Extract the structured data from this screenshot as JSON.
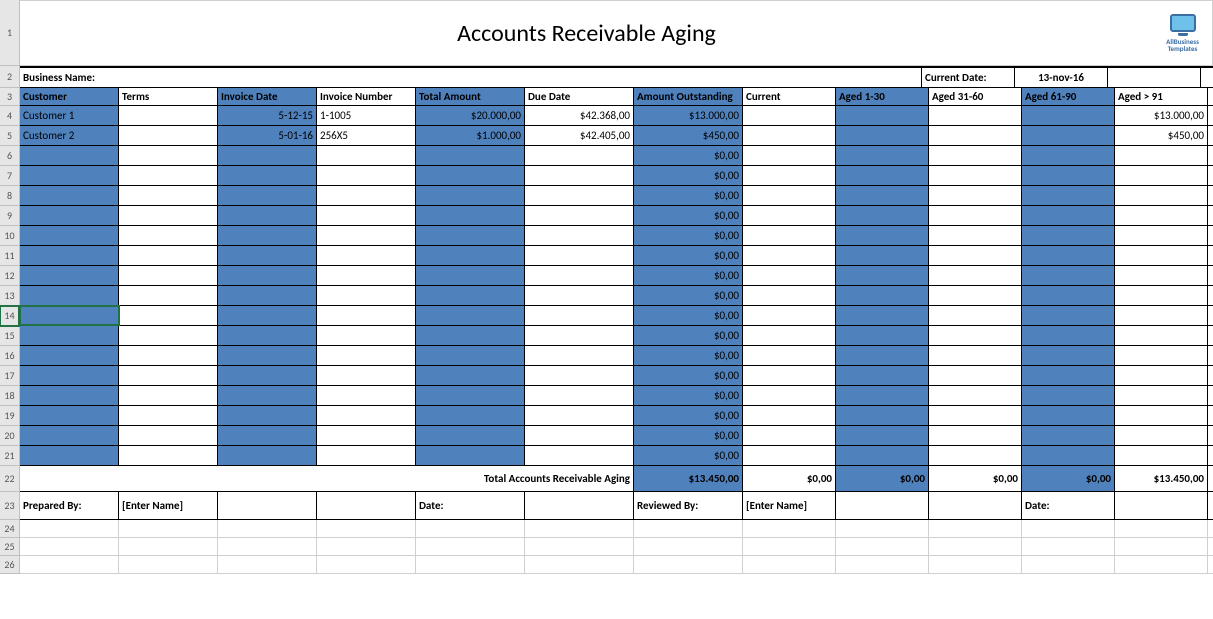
{
  "title": "Accounts Receivable Aging",
  "logo_text": "AllBusiness Templates",
  "business_label": "Business Name:",
  "current_date_label": "Current Date:",
  "current_date_value": "13-nov-16",
  "colors": {
    "blue_fill": "#4f81bd",
    "grid_border": "#000000",
    "light_border": "#d0d0d0",
    "rowhdr_bg": "#e6e6e6",
    "selection": "#217346"
  },
  "selected_row": 14,
  "headers": [
    "Customer",
    "Terms",
    "Invoice Date",
    "Invoice Number",
    "Total Amount",
    "Due Date",
    "Amount Outstanding",
    "Current",
    "Aged 1-30",
    "Aged 31-60",
    "Aged 61-90",
    "Aged > 91"
  ],
  "header_blue": [
    true,
    false,
    true,
    false,
    true,
    false,
    true,
    false,
    true,
    false,
    true,
    false
  ],
  "col_align": [
    "left",
    "left",
    "right",
    "left",
    "right",
    "right",
    "right",
    "right",
    "right",
    "right",
    "right",
    "right"
  ],
  "col_blue": [
    true,
    false,
    true,
    false,
    true,
    false,
    true,
    false,
    true,
    false,
    true,
    false
  ],
  "rows": [
    [
      "Customer 1",
      "",
      "5-12-15",
      "1-1005",
      "$20.000,00",
      "$42.368,00",
      "$13.000,00",
      "",
      "",
      "",
      "",
      "$13.000,00"
    ],
    [
      "Customer 2",
      "",
      "5-01-16",
      "256X5",
      "$1.000,00",
      "$42.405,00",
      "$450,00",
      "",
      "",
      "",
      "",
      "$450,00"
    ],
    [
      "",
      "",
      "",
      "",
      "",
      "",
      "$0,00",
      "",
      "",
      "",
      "",
      ""
    ],
    [
      "",
      "",
      "",
      "",
      "",
      "",
      "$0,00",
      "",
      "",
      "",
      "",
      ""
    ],
    [
      "",
      "",
      "",
      "",
      "",
      "",
      "$0,00",
      "",
      "",
      "",
      "",
      ""
    ],
    [
      "",
      "",
      "",
      "",
      "",
      "",
      "$0,00",
      "",
      "",
      "",
      "",
      ""
    ],
    [
      "",
      "",
      "",
      "",
      "",
      "",
      "$0,00",
      "",
      "",
      "",
      "",
      ""
    ],
    [
      "",
      "",
      "",
      "",
      "",
      "",
      "$0,00",
      "",
      "",
      "",
      "",
      ""
    ],
    [
      "",
      "",
      "",
      "",
      "",
      "",
      "$0,00",
      "",
      "",
      "",
      "",
      ""
    ],
    [
      "",
      "",
      "",
      "",
      "",
      "",
      "$0,00",
      "",
      "",
      "",
      "",
      ""
    ],
    [
      "",
      "",
      "",
      "",
      "",
      "",
      "$0,00",
      "",
      "",
      "",
      "",
      ""
    ],
    [
      "",
      "",
      "",
      "",
      "",
      "",
      "$0,00",
      "",
      "",
      "",
      "",
      ""
    ],
    [
      "",
      "",
      "",
      "",
      "",
      "",
      "$0,00",
      "",
      "",
      "",
      "",
      ""
    ],
    [
      "",
      "",
      "",
      "",
      "",
      "",
      "$0,00",
      "",
      "",
      "",
      "",
      ""
    ],
    [
      "",
      "",
      "",
      "",
      "",
      "",
      "$0,00",
      "",
      "",
      "",
      "",
      ""
    ],
    [
      "",
      "",
      "",
      "",
      "",
      "",
      "$0,00",
      "",
      "",
      "",
      "",
      ""
    ],
    [
      "",
      "",
      "",
      "",
      "",
      "",
      "$0,00",
      "",
      "",
      "",
      "",
      ""
    ],
    [
      "",
      "",
      "",
      "",
      "",
      "",
      "$0,00",
      "",
      "",
      "",
      "",
      ""
    ]
  ],
  "totals_label": "Total Accounts Receivable Aging",
  "totals": [
    "$13.450,00",
    "$0,00",
    "$0,00",
    "$0,00",
    "$0,00",
    "$13.450,00"
  ],
  "totals_blue": [
    true,
    false,
    true,
    false,
    true,
    false
  ],
  "footer": {
    "prepared_by": "Prepared By:",
    "prepared_name": "[Enter Name]",
    "date1": "Date:",
    "reviewed_by": "Reviewed By:",
    "reviewed_name": "[Enter Name]",
    "date2": "Date:"
  },
  "row_heights": {
    "title": 66,
    "biz": 22,
    "hdr": 18,
    "data": 20,
    "totals": 26,
    "prep": 28,
    "empty": 18
  },
  "row_numbers": [
    1,
    2,
    3,
    4,
    5,
    6,
    7,
    8,
    9,
    10,
    11,
    12,
    13,
    14,
    15,
    16,
    17,
    18,
    19,
    20,
    21,
    22,
    23,
    24,
    25,
    26
  ]
}
